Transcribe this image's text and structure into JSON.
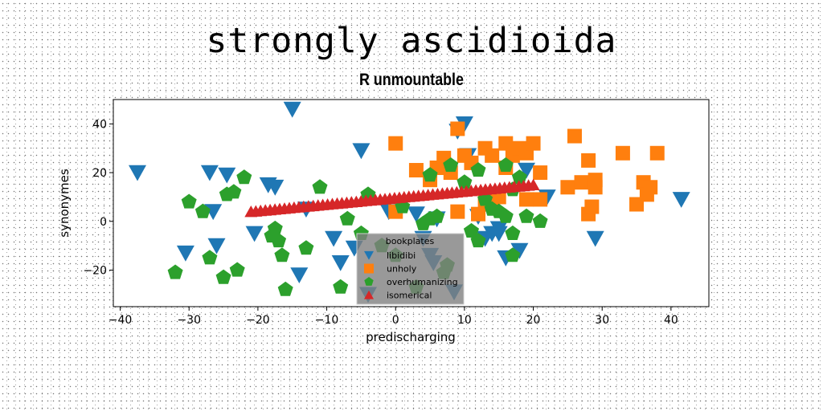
{
  "chart_data": {
    "type": "scatter",
    "title": "strongly ascidioida",
    "subtitle": "R unmountable",
    "xlabel": "predischarging",
    "ylabel": "synonymes",
    "xlim": [
      -41,
      45.5
    ],
    "ylim": [
      -35,
      50
    ],
    "xticks": [
      -40,
      -30,
      -20,
      -10,
      0,
      10,
      20,
      30,
      40
    ],
    "yticks": [
      -20,
      0,
      20,
      40
    ],
    "xtick_labels": [
      "−40",
      "−30",
      "−20",
      "−10",
      "0",
      "10",
      "20",
      "30",
      "40"
    ],
    "ytick_labels": [
      "−20",
      "0",
      "20",
      "40"
    ],
    "grid": false,
    "legend": {
      "placement": "bottom-center",
      "title": "bookplates"
    },
    "series": [
      {
        "name": "libidibi",
        "marker": "triangle-down",
        "color": "#1f77b4",
        "points": [
          [
            -37.5,
            20
          ],
          [
            -30.5,
            -13
          ],
          [
            -27,
            20
          ],
          [
            -26.5,
            4
          ],
          [
            -26,
            -10
          ],
          [
            -24.5,
            19
          ],
          [
            -20.5,
            -5
          ],
          [
            -18.5,
            15
          ],
          [
            -17.5,
            14
          ],
          [
            -15,
            46
          ],
          [
            -14,
            -22
          ],
          [
            -13,
            5
          ],
          [
            -9,
            -7
          ],
          [
            -8,
            -17
          ],
          [
            -6,
            -11
          ],
          [
            -5,
            29
          ],
          [
            -4,
            -30
          ],
          [
            -1,
            4
          ],
          [
            3,
            3
          ],
          [
            4,
            -7
          ],
          [
            5,
            -14
          ],
          [
            5.5,
            -17
          ],
          [
            6,
            1
          ],
          [
            8.5,
            -29
          ],
          [
            9,
            37
          ],
          [
            10,
            40
          ],
          [
            10.5,
            27
          ],
          [
            12,
            2
          ],
          [
            13,
            -7
          ],
          [
            14,
            -5
          ],
          [
            15,
            -3
          ],
          [
            15,
            -5
          ],
          [
            16,
            -15
          ],
          [
            18,
            -12
          ],
          [
            19,
            21
          ],
          [
            22,
            10
          ],
          [
            29,
            -7
          ],
          [
            41.5,
            9
          ]
        ]
      },
      {
        "name": "unholy",
        "marker": "square",
        "color": "#ff7f0e",
        "points": [
          [
            0,
            32
          ],
          [
            0,
            4
          ],
          [
            3,
            21
          ],
          [
            5,
            17
          ],
          [
            6,
            22
          ],
          [
            7,
            26
          ],
          [
            8,
            20
          ],
          [
            9,
            38
          ],
          [
            9,
            4
          ],
          [
            10,
            27
          ],
          [
            11,
            24
          ],
          [
            12,
            3
          ],
          [
            13,
            8
          ],
          [
            13,
            30
          ],
          [
            14,
            27
          ],
          [
            14,
            7
          ],
          [
            15,
            10
          ],
          [
            16,
            22
          ],
          [
            16,
            32
          ],
          [
            17,
            27
          ],
          [
            18,
            30
          ],
          [
            19,
            28
          ],
          [
            19,
            9
          ],
          [
            20,
            32
          ],
          [
            21,
            9
          ],
          [
            21,
            20
          ],
          [
            25,
            14
          ],
          [
            26,
            35
          ],
          [
            27,
            16
          ],
          [
            28,
            25
          ],
          [
            28,
            3
          ],
          [
            28.5,
            6
          ],
          [
            29,
            14
          ],
          [
            29,
            17
          ],
          [
            33,
            28
          ],
          [
            35,
            7
          ],
          [
            36,
            16
          ],
          [
            36.5,
            11
          ],
          [
            37,
            14
          ],
          [
            38,
            28
          ]
        ]
      },
      {
        "name": "overhumanizing",
        "marker": "pentagon",
        "color": "#2ca02c",
        "points": [
          [
            -32,
            -21
          ],
          [
            -30,
            8
          ],
          [
            -28,
            4
          ],
          [
            -27,
            -15
          ],
          [
            -25,
            -23
          ],
          [
            -24.5,
            11
          ],
          [
            -23.5,
            12
          ],
          [
            -23,
            -20
          ],
          [
            -22,
            18
          ],
          [
            -18,
            -6
          ],
          [
            -17.5,
            -3
          ],
          [
            -17,
            -8
          ],
          [
            -16.5,
            -14
          ],
          [
            -16,
            -28
          ],
          [
            -13,
            -11
          ],
          [
            -11,
            14
          ],
          [
            -8,
            -27
          ],
          [
            -7,
            1
          ],
          [
            -5,
            -5
          ],
          [
            -4,
            11
          ],
          [
            -2,
            -10
          ],
          [
            0,
            -14
          ],
          [
            1,
            6
          ],
          [
            3,
            -27
          ],
          [
            4,
            -1
          ],
          [
            5,
            1
          ],
          [
            5,
            19
          ],
          [
            6,
            2
          ],
          [
            7,
            -21
          ],
          [
            7.5,
            -18
          ],
          [
            8,
            23
          ],
          [
            10,
            16
          ],
          [
            11,
            -4
          ],
          [
            12,
            21
          ],
          [
            12,
            -8
          ],
          [
            13,
            9
          ],
          [
            14,
            5
          ],
          [
            15,
            4
          ],
          [
            16,
            23
          ],
          [
            16,
            2
          ],
          [
            17,
            -5
          ],
          [
            17,
            13
          ],
          [
            17,
            -14
          ],
          [
            18,
            18
          ],
          [
            19,
            2
          ],
          [
            21,
            0
          ]
        ]
      },
      {
        "name": "isomerical",
        "marker": "triangle-up",
        "color": "#d62728",
        "line": {
          "x0": -21,
          "y0": 4,
          "x1": 20,
          "y1": 15,
          "count": 60
        }
      }
    ]
  }
}
